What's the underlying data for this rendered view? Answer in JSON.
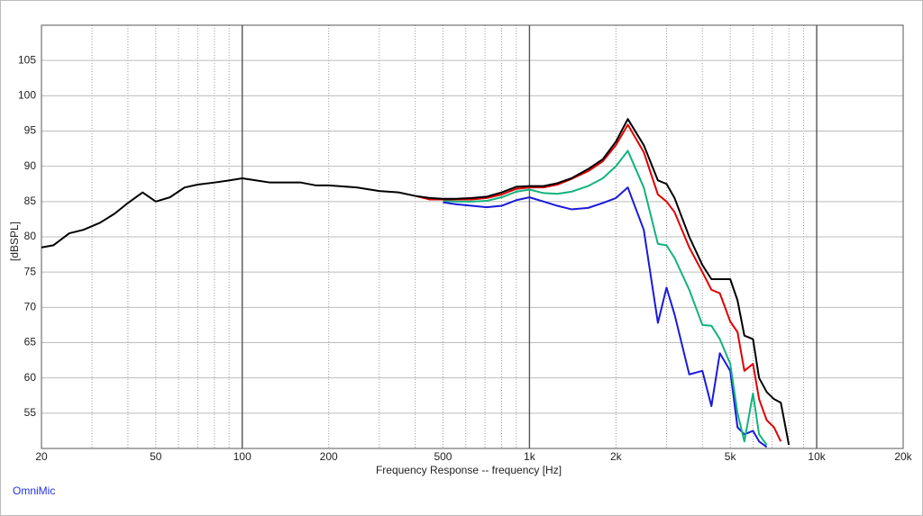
{
  "chart_data": {
    "type": "line",
    "xlabel": "Frequency Response -- frequency [Hz]",
    "ylabel": "[dBSPL]",
    "annotation": "OmniMic",
    "log_x": true,
    "grid": true,
    "xlim": [
      20,
      20000
    ],
    "ylim": [
      50,
      110
    ],
    "yticks": [
      55,
      60,
      65,
      70,
      75,
      80,
      85,
      90,
      95,
      100,
      105
    ],
    "xticks": [
      20,
      50,
      100,
      200,
      500,
      {
        "value": 1000,
        "label": "1k"
      },
      {
        "value": 2000,
        "label": "2k"
      },
      {
        "value": 5000,
        "label": "5k"
      },
      {
        "value": 10000,
        "label": "10k"
      },
      {
        "value": 20000,
        "label": "20k"
      }
    ],
    "xminorticks": [
      30,
      40,
      60,
      70,
      80,
      90,
      300,
      400,
      600,
      700,
      800,
      900,
      3000,
      4000,
      6000,
      7000,
      8000,
      9000
    ],
    "x": [
      20,
      22,
      25,
      28,
      32,
      36,
      40,
      45,
      50,
      56,
      63,
      70,
      80,
      90,
      100,
      112,
      125,
      140,
      160,
      180,
      200,
      250,
      300,
      350,
      400,
      450,
      500,
      560,
      630,
      710,
      800,
      900,
      1000,
      1120,
      1250,
      1400,
      1600,
      1800,
      2000,
      2200,
      2500,
      2800,
      3000,
      3200,
      3600,
      4000,
      4300,
      4600,
      5000,
      5300,
      5600,
      6000,
      6300,
      6700,
      7100,
      7500,
      8000
    ],
    "series": [
      {
        "color": "#000000",
        "values": [
          78.5,
          78.8,
          80.5,
          81,
          82,
          83.3,
          84.8,
          86.3,
          85,
          85.6,
          87,
          87.4,
          87.7,
          88,
          88.3,
          88,
          87.7,
          87.7,
          87.7,
          87.3,
          87.3,
          87,
          86.5,
          86.3,
          85.8,
          85.5,
          85.4,
          85.4,
          85.5,
          85.7,
          86.3,
          87.1,
          87.2,
          87.2,
          87.6,
          88.3,
          89.6,
          91,
          93.5,
          96.7,
          93,
          88,
          87.5,
          85.5,
          80,
          76,
          74,
          74,
          74,
          71,
          66,
          65.5,
          60,
          58,
          57,
          56.5,
          50.5
        ]
      },
      {
        "color": "#e00000",
        "values": [
          null,
          null,
          null,
          null,
          null,
          null,
          null,
          null,
          null,
          null,
          null,
          null,
          null,
          null,
          null,
          null,
          null,
          null,
          null,
          null,
          null,
          null,
          null,
          null,
          85.8,
          85.3,
          85.3,
          85.3,
          85.3,
          85.5,
          86,
          86.8,
          87,
          87,
          87.4,
          88.2,
          89.3,
          90.7,
          93,
          95.9,
          92,
          86,
          85,
          83.5,
          78.5,
          75,
          72.5,
          72,
          68,
          66.5,
          61,
          62,
          57,
          54,
          53,
          51,
          null
        ]
      },
      {
        "color": "#12b37e",
        "values": [
          null,
          null,
          null,
          null,
          null,
          null,
          null,
          null,
          null,
          null,
          null,
          null,
          null,
          null,
          null,
          null,
          null,
          null,
          null,
          null,
          null,
          null,
          null,
          null,
          null,
          null,
          85.1,
          85,
          85,
          85.1,
          85.6,
          86.4,
          86.7,
          86.2,
          86.1,
          86.4,
          87.2,
          88.3,
          90,
          92.2,
          87,
          79,
          78.8,
          77,
          72.5,
          67.5,
          67.4,
          65.5,
          62,
          55,
          51,
          57.8,
          52,
          50.5,
          null,
          null,
          null
        ]
      },
      {
        "color": "#1a1adb",
        "values": [
          null,
          null,
          null,
          null,
          null,
          null,
          null,
          null,
          null,
          null,
          null,
          null,
          null,
          null,
          null,
          null,
          null,
          null,
          null,
          null,
          null,
          null,
          null,
          null,
          null,
          null,
          84.9,
          84.6,
          84.4,
          84.2,
          84.4,
          85.2,
          85.6,
          85,
          84.4,
          83.9,
          84.1,
          84.8,
          85.5,
          87,
          81,
          67.8,
          72.8,
          69,
          60.5,
          61,
          56,
          63.5,
          61,
          53,
          52,
          52.5,
          51,
          50.2,
          null,
          null,
          null
        ]
      }
    ]
  }
}
